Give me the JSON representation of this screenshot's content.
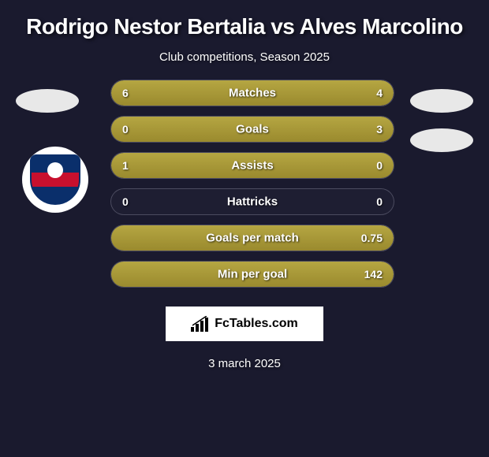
{
  "header": {
    "title": "Rodrigo Nestor Bertalia vs Alves Marcolino",
    "subtitle": "Club competitions, Season 2025"
  },
  "stats": [
    {
      "label": "Matches",
      "left_value": "6",
      "right_value": "4",
      "left_pct": 60,
      "right_pct": 40,
      "fill_type": "full"
    },
    {
      "label": "Goals",
      "left_value": "0",
      "right_value": "3",
      "left_pct": 0,
      "right_pct": 100,
      "fill_type": "right"
    },
    {
      "label": "Assists",
      "left_value": "1",
      "right_value": "0",
      "left_pct": 100,
      "right_pct": 0,
      "fill_type": "left"
    },
    {
      "label": "Hattricks",
      "left_value": "0",
      "right_value": "0",
      "left_pct": 0,
      "right_pct": 0,
      "fill_type": "none"
    },
    {
      "label": "Goals per match",
      "left_value": "",
      "right_value": "0.75",
      "left_pct": 0,
      "right_pct": 100,
      "fill_type": "right"
    },
    {
      "label": "Min per goal",
      "left_value": "",
      "right_value": "142",
      "left_pct": 0,
      "right_pct": 100,
      "fill_type": "right"
    }
  ],
  "branding": {
    "text": "FcTables.com"
  },
  "footer": {
    "date": "3 march 2025"
  },
  "colors": {
    "background": "#1a1a2e",
    "bar_fill": "#b5a642",
    "text": "#ffffff",
    "branding_bg": "#ffffff",
    "branding_text": "#000000"
  }
}
